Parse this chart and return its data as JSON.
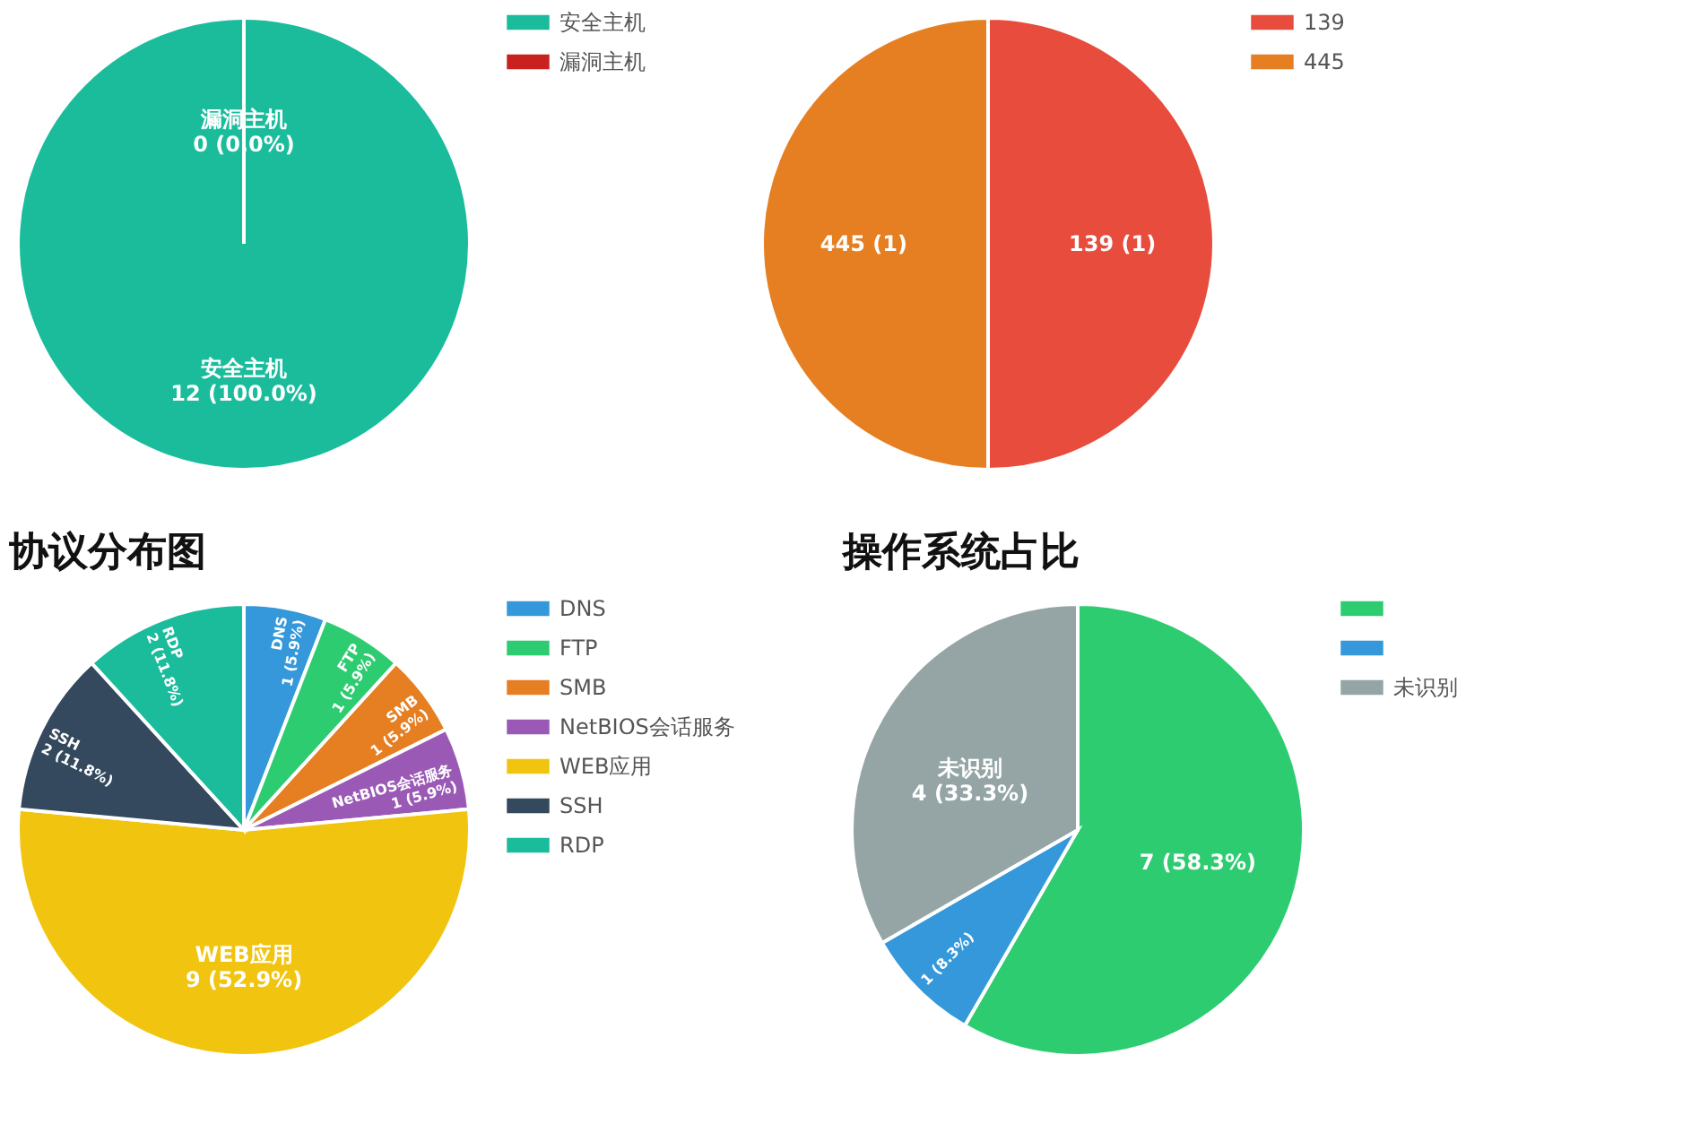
{
  "chart_data": [
    {
      "type": "pie",
      "categories": [
        "安全主机",
        "漏洞主机"
      ],
      "values": [
        12,
        0
      ],
      "colors": [
        "#1abc9c",
        "#c9211e"
      ],
      "value_labels": [
        "安全主机\n12 (100.0%)",
        "漏洞主机\n0 (0.0%)"
      ],
      "legend": "right"
    },
    {
      "type": "pie",
      "categories": [
        "139",
        "445"
      ],
      "values": [
        1,
        1
      ],
      "colors": [
        "#e74c3c",
        "#e67e22"
      ],
      "value_labels": [
        "139 (1)",
        "445 (1)"
      ],
      "legend": "right"
    },
    {
      "type": "pie",
      "title": "协议分布图",
      "categories": [
        "DNS",
        "FTP",
        "SMB",
        "NetBIOS会话服务",
        "WEB应用",
        "SSH",
        "RDP"
      ],
      "values": [
        1,
        1,
        1,
        1,
        9,
        2,
        2
      ],
      "colors": [
        "#3498db",
        "#2ecc71",
        "#e67e22",
        "#9b59b6",
        "#f1c40f",
        "#34495e",
        "#1abc9c"
      ],
      "value_labels": [
        "DNS\n1 (5.9%)",
        "FTP\n1 (5.9%)",
        "SMB\n1 (5.9%)",
        "NetBIOS会话服务\n1 (5.9%)",
        "WEB应用\n9 (52.9%)",
        "SSH\n2 (11.8%)",
        "RDP\n2 (11.8%)"
      ],
      "legend": "right"
    },
    {
      "type": "pie",
      "title": "操作系统占比",
      "categories": [
        null,
        null,
        "未识别"
      ],
      "values": [
        7,
        1,
        4
      ],
      "colors": [
        "#2ecc71",
        "#3498db",
        "#95a5a6"
      ],
      "value_labels": [
        "7 (58.3%)",
        "1 (8.3%)",
        "未识别\n4 (33.3%)"
      ],
      "legend": "right"
    }
  ]
}
